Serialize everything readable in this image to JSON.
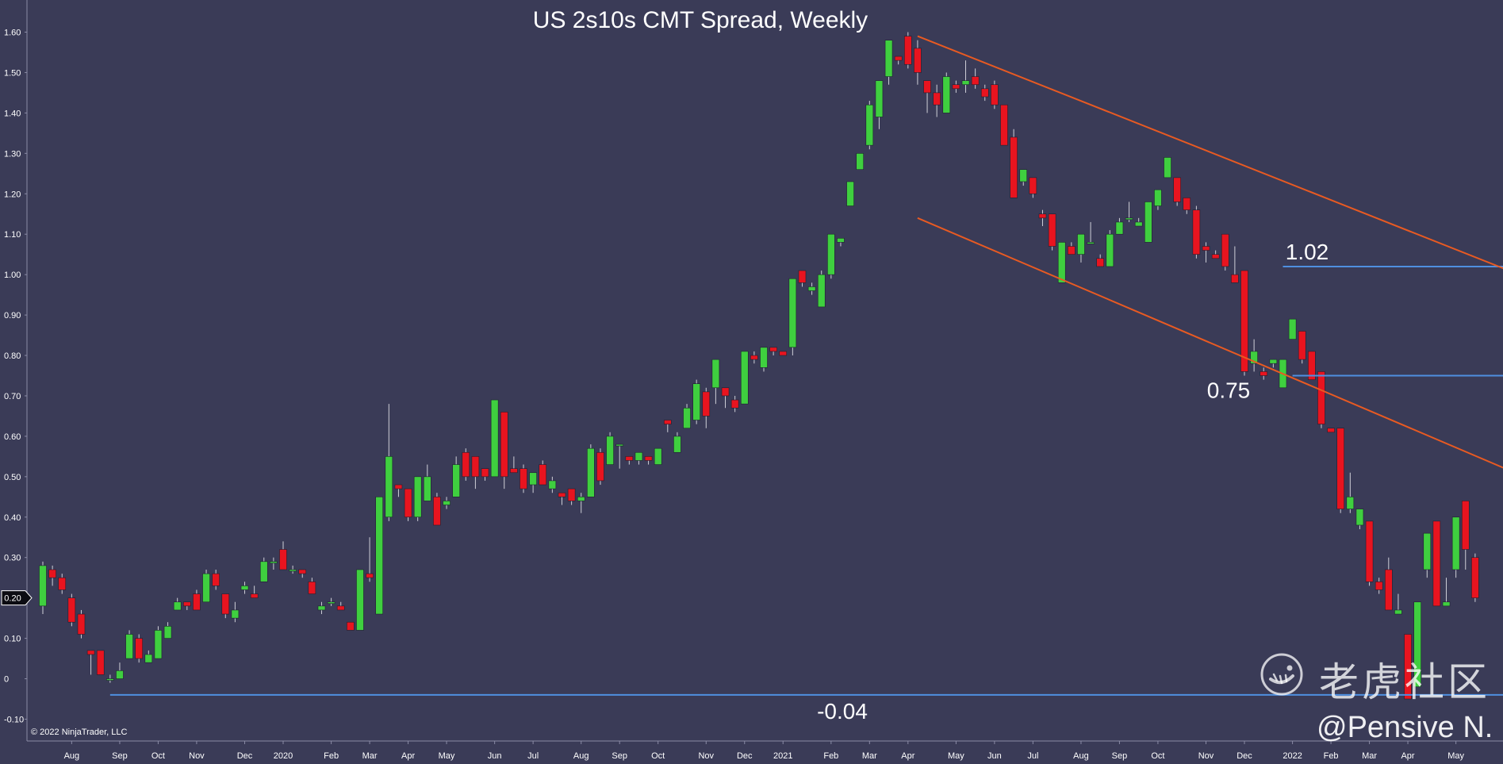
{
  "chart_data": {
    "type": "candlestick",
    "title": "US 2s10s CMT Spread, Weekly",
    "copyright": "© 2022 NinjaTrader, LLC",
    "ylim": [
      -0.12,
      1.64
    ],
    "y_ticks": [
      "1.60",
      "1.50",
      "1.40",
      "1.30",
      "1.20",
      "1.10",
      "1.00",
      "0.90",
      "0.80",
      "0.70",
      "0.60",
      "0.50",
      "0.40",
      "0.30",
      "0.20",
      "0.10",
      "0",
      "-0.10"
    ],
    "current_value_label": "0.20",
    "current_value": 0.2,
    "x_ticks": [
      {
        "label": "Aug",
        "week": 3
      },
      {
        "label": "Sep",
        "week": 8
      },
      {
        "label": "Oct",
        "week": 12
      },
      {
        "label": "Nov",
        "week": 16
      },
      {
        "label": "Dec",
        "week": 21
      },
      {
        "label": "2020",
        "week": 25
      },
      {
        "label": "Feb",
        "week": 30
      },
      {
        "label": "Mar",
        "week": 34
      },
      {
        "label": "Apr",
        "week": 38
      },
      {
        "label": "May",
        "week": 42
      },
      {
        "label": "Jun",
        "week": 47
      },
      {
        "label": "Jul",
        "week": 51
      },
      {
        "label": "Aug",
        "week": 56
      },
      {
        "label": "Sep",
        "week": 60
      },
      {
        "label": "Oct",
        "week": 64
      },
      {
        "label": "Nov",
        "week": 69
      },
      {
        "label": "Dec",
        "week": 73
      },
      {
        "label": "2021",
        "week": 77
      },
      {
        "label": "Feb",
        "week": 82
      },
      {
        "label": "Mar",
        "week": 86
      },
      {
        "label": "Apr",
        "week": 90
      },
      {
        "label": "May",
        "week": 95
      },
      {
        "label": "Jun",
        "week": 99
      },
      {
        "label": "Jul",
        "week": 103
      },
      {
        "label": "Aug",
        "week": 108
      },
      {
        "label": "Sep",
        "week": 112
      },
      {
        "label": "Oct",
        "week": 116
      },
      {
        "label": "Nov",
        "week": 121
      },
      {
        "label": "Dec",
        "week": 125
      },
      {
        "label": "2022",
        "week": 130
      },
      {
        "label": "Feb",
        "week": 134
      },
      {
        "label": "Mar",
        "week": 138
      },
      {
        "label": "Apr",
        "week": 142
      },
      {
        "label": "May",
        "week": 147
      }
    ],
    "candles": [
      [
        0.18,
        0.28,
        0.29,
        0.16
      ],
      [
        0.27,
        0.25,
        0.28,
        0.23
      ],
      [
        0.25,
        0.22,
        0.26,
        0.21
      ],
      [
        0.2,
        0.14,
        0.21,
        0.13
      ],
      [
        0.16,
        0.11,
        0.17,
        0.1
      ],
      [
        0.07,
        0.06,
        0.07,
        0.01
      ],
      [
        0.07,
        0.01,
        0.07,
        0.01
      ],
      [
        0.0,
        0.0,
        0.01,
        -0.01
      ],
      [
        0.0,
        0.02,
        0.04,
        0.0
      ],
      [
        0.05,
        0.11,
        0.12,
        0.05
      ],
      [
        0.1,
        0.05,
        0.11,
        0.04
      ],
      [
        0.04,
        0.06,
        0.07,
        0.04
      ],
      [
        0.05,
        0.12,
        0.13,
        0.05
      ],
      [
        0.1,
        0.13,
        0.14,
        0.1
      ],
      [
        0.17,
        0.19,
        0.2,
        0.17
      ],
      [
        0.19,
        0.18,
        0.19,
        0.17
      ],
      [
        0.21,
        0.17,
        0.22,
        0.17
      ],
      [
        0.19,
        0.26,
        0.27,
        0.19
      ],
      [
        0.26,
        0.23,
        0.27,
        0.22
      ],
      [
        0.21,
        0.16,
        0.21,
        0.15
      ],
      [
        0.15,
        0.17,
        0.19,
        0.14
      ],
      [
        0.22,
        0.23,
        0.24,
        0.21
      ],
      [
        0.21,
        0.2,
        0.23,
        0.2
      ],
      [
        0.24,
        0.29,
        0.3,
        0.24
      ],
      [
        0.29,
        0.29,
        0.3,
        0.27
      ],
      [
        0.32,
        0.27,
        0.34,
        0.27
      ],
      [
        0.27,
        0.27,
        0.28,
        0.26
      ],
      [
        0.27,
        0.26,
        0.27,
        0.25
      ],
      [
        0.24,
        0.21,
        0.25,
        0.21
      ],
      [
        0.17,
        0.18,
        0.19,
        0.16
      ],
      [
        0.19,
        0.19,
        0.2,
        0.18
      ],
      [
        0.18,
        0.17,
        0.19,
        0.17
      ],
      [
        0.14,
        0.12,
        0.14,
        0.12
      ],
      [
        0.12,
        0.27,
        0.27,
        0.12
      ],
      [
        0.26,
        0.25,
        0.35,
        0.24
      ],
      [
        0.16,
        0.45,
        0.45,
        0.16
      ],
      [
        0.4,
        0.55,
        0.68,
        0.39
      ],
      [
        0.48,
        0.47,
        0.48,
        0.45
      ],
      [
        0.47,
        0.4,
        0.47,
        0.39
      ],
      [
        0.4,
        0.5,
        0.5,
        0.39
      ],
      [
        0.44,
        0.5,
        0.53,
        0.44
      ],
      [
        0.45,
        0.38,
        0.46,
        0.38
      ],
      [
        0.43,
        0.44,
        0.45,
        0.42
      ],
      [
        0.45,
        0.53,
        0.55,
        0.45
      ],
      [
        0.56,
        0.5,
        0.57,
        0.49
      ],
      [
        0.55,
        0.5,
        0.55,
        0.47
      ],
      [
        0.52,
        0.5,
        0.52,
        0.49
      ],
      [
        0.5,
        0.69,
        0.69,
        0.5
      ],
      [
        0.66,
        0.5,
        0.66,
        0.47
      ],
      [
        0.52,
        0.51,
        0.55,
        0.51
      ],
      [
        0.52,
        0.47,
        0.53,
        0.46
      ],
      [
        0.48,
        0.51,
        0.51,
        0.46
      ],
      [
        0.53,
        0.48,
        0.54,
        0.48
      ],
      [
        0.47,
        0.49,
        0.5,
        0.46
      ],
      [
        0.46,
        0.45,
        0.46,
        0.43
      ],
      [
        0.47,
        0.44,
        0.47,
        0.43
      ],
      [
        0.44,
        0.45,
        0.46,
        0.41
      ],
      [
        0.45,
        0.57,
        0.58,
        0.45
      ],
      [
        0.56,
        0.49,
        0.57,
        0.48
      ],
      [
        0.53,
        0.6,
        0.61,
        0.53
      ],
      [
        0.58,
        0.58,
        0.58,
        0.52
      ],
      [
        0.55,
        0.54,
        0.55,
        0.53
      ],
      [
        0.54,
        0.56,
        0.56,
        0.53
      ],
      [
        0.55,
        0.54,
        0.55,
        0.53
      ],
      [
        0.53,
        0.57,
        0.57,
        0.53
      ],
      [
        0.64,
        0.63,
        0.64,
        0.61
      ],
      [
        0.56,
        0.6,
        0.61,
        0.56
      ],
      [
        0.62,
        0.67,
        0.68,
        0.62
      ],
      [
        0.64,
        0.73,
        0.74,
        0.63
      ],
      [
        0.71,
        0.65,
        0.72,
        0.62
      ],
      [
        0.72,
        0.79,
        0.79,
        0.68
      ],
      [
        0.72,
        0.7,
        0.72,
        0.67
      ],
      [
        0.69,
        0.67,
        0.7,
        0.66
      ],
      [
        0.68,
        0.81,
        0.81,
        0.68
      ],
      [
        0.8,
        0.79,
        0.81,
        0.78
      ],
      [
        0.77,
        0.82,
        0.82,
        0.76
      ],
      [
        0.82,
        0.81,
        0.82,
        0.8
      ],
      [
        0.81,
        0.8,
        0.81,
        0.8
      ],
      [
        0.82,
        0.99,
        0.99,
        0.8
      ],
      [
        1.01,
        0.98,
        1.01,
        0.97
      ],
      [
        0.96,
        0.97,
        0.98,
        0.95
      ],
      [
        0.92,
        1.0,
        1.01,
        0.92
      ],
      [
        1.0,
        1.1,
        1.1,
        0.99
      ],
      [
        1.08,
        1.09,
        1.09,
        1.07
      ],
      [
        1.17,
        1.23,
        1.23,
        1.17
      ],
      [
        1.26,
        1.3,
        1.3,
        1.26
      ],
      [
        1.32,
        1.42,
        1.43,
        1.31
      ],
      [
        1.39,
        1.48,
        1.48,
        1.36
      ],
      [
        1.49,
        1.58,
        1.58,
        1.47
      ],
      [
        1.54,
        1.53,
        1.54,
        1.52
      ],
      [
        1.59,
        1.52,
        1.6,
        1.51
      ],
      [
        1.56,
        1.5,
        1.58,
        1.47
      ],
      [
        1.48,
        1.45,
        1.48,
        1.4
      ],
      [
        1.45,
        1.42,
        1.47,
        1.39
      ],
      [
        1.4,
        1.49,
        1.5,
        1.4
      ],
      [
        1.47,
        1.46,
        1.48,
        1.45
      ],
      [
        1.47,
        1.48,
        1.53,
        1.45
      ],
      [
        1.49,
        1.47,
        1.51,
        1.46
      ],
      [
        1.46,
        1.44,
        1.47,
        1.43
      ],
      [
        1.47,
        1.42,
        1.48,
        1.41
      ],
      [
        1.42,
        1.32,
        1.42,
        1.32
      ],
      [
        1.34,
        1.19,
        1.36,
        1.19
      ],
      [
        1.23,
        1.26,
        1.26,
        1.22
      ],
      [
        1.24,
        1.2,
        1.24,
        1.19
      ],
      [
        1.15,
        1.14,
        1.16,
        1.12
      ],
      [
        1.15,
        1.07,
        1.15,
        1.06
      ],
      [
        0.98,
        1.08,
        1.08,
        0.98
      ],
      [
        1.07,
        1.05,
        1.08,
        1.05
      ],
      [
        1.05,
        1.1,
        1.1,
        1.03
      ],
      [
        1.08,
        1.08,
        1.13,
        1.08
      ],
      [
        1.04,
        1.02,
        1.05,
        1.02
      ],
      [
        1.02,
        1.1,
        1.11,
        1.02
      ],
      [
        1.1,
        1.13,
        1.14,
        1.1
      ],
      [
        1.14,
        1.14,
        1.18,
        1.13
      ],
      [
        1.12,
        1.13,
        1.14,
        1.12
      ],
      [
        1.08,
        1.18,
        1.18,
        1.08
      ],
      [
        1.17,
        1.21,
        1.21,
        1.16
      ],
      [
        1.24,
        1.29,
        1.29,
        1.24
      ],
      [
        1.24,
        1.18,
        1.24,
        1.17
      ],
      [
        1.19,
        1.16,
        1.19,
        1.15
      ],
      [
        1.16,
        1.05,
        1.17,
        1.04
      ],
      [
        1.07,
        1.06,
        1.08,
        1.03
      ],
      [
        1.05,
        1.04,
        1.06,
        1.04
      ],
      [
        1.1,
        1.02,
        1.1,
        1.01
      ],
      [
        1.0,
        0.98,
        1.07,
        0.98
      ],
      [
        1.01,
        0.76,
        1.01,
        0.75
      ],
      [
        0.78,
        0.81,
        0.84,
        0.76
      ],
      [
        0.76,
        0.75,
        0.77,
        0.74
      ],
      [
        0.78,
        0.79,
        0.79,
        0.77
      ],
      [
        0.72,
        0.79,
        0.79,
        0.72
      ],
      [
        0.84,
        0.89,
        0.89,
        0.84
      ],
      [
        0.86,
        0.79,
        0.86,
        0.78
      ],
      [
        0.81,
        0.74,
        0.81,
        0.74
      ],
      [
        0.76,
        0.63,
        0.76,
        0.62
      ],
      [
        0.62,
        0.61,
        0.62,
        0.61
      ],
      [
        0.62,
        0.42,
        0.62,
        0.41
      ],
      [
        0.42,
        0.45,
        0.51,
        0.41
      ],
      [
        0.38,
        0.42,
        0.42,
        0.37
      ],
      [
        0.39,
        0.24,
        0.39,
        0.23
      ],
      [
        0.24,
        0.22,
        0.25,
        0.21
      ],
      [
        0.27,
        0.17,
        0.3,
        0.17
      ],
      [
        0.16,
        0.17,
        0.21,
        0.16
      ],
      [
        0.11,
        -0.05,
        0.11,
        -0.05
      ],
      [
        -0.02,
        0.19,
        0.19,
        -0.02
      ],
      [
        0.27,
        0.36,
        0.36,
        0.25
      ],
      [
        0.39,
        0.18,
        0.39,
        0.18
      ],
      [
        0.18,
        0.19,
        0.25,
        0.18
      ],
      [
        0.27,
        0.4,
        0.4,
        0.25
      ],
      [
        0.44,
        0.32,
        0.44,
        0.27
      ],
      [
        0.3,
        0.2,
        0.31,
        0.19
      ]
    ],
    "horizontal_lines": [
      {
        "value": 1.02,
        "label": "1.02",
        "x_from_week": 129,
        "x_to_week": 180
      },
      {
        "value": 0.75,
        "label": "0.75",
        "x_from_week": 130,
        "x_to_week": 999
      },
      {
        "value": -0.04,
        "label": "-0.04",
        "x_from_week": 7,
        "x_to_week": 999
      }
    ],
    "trend_lines": [
      {
        "from": {
          "week": 91,
          "value": 1.59
        },
        "to": {
          "week": 161,
          "value": 0.93
        }
      },
      {
        "from": {
          "week": 91,
          "value": 1.14
        },
        "to": {
          "week": 161,
          "value": 0.43
        }
      }
    ],
    "colors": {
      "background": "#3a3b57",
      "up": "#3fcf3f",
      "down": "#e8141f",
      "wick": "#d0d0d8",
      "axis_text": "#ffffff",
      "support_line": "#4f8fe0",
      "trend_line": "#e85a22"
    }
  },
  "watermark": {
    "community": "老虎社区",
    "handle": "@Pensive N.",
    "icon": "tiger-logo-icon"
  }
}
